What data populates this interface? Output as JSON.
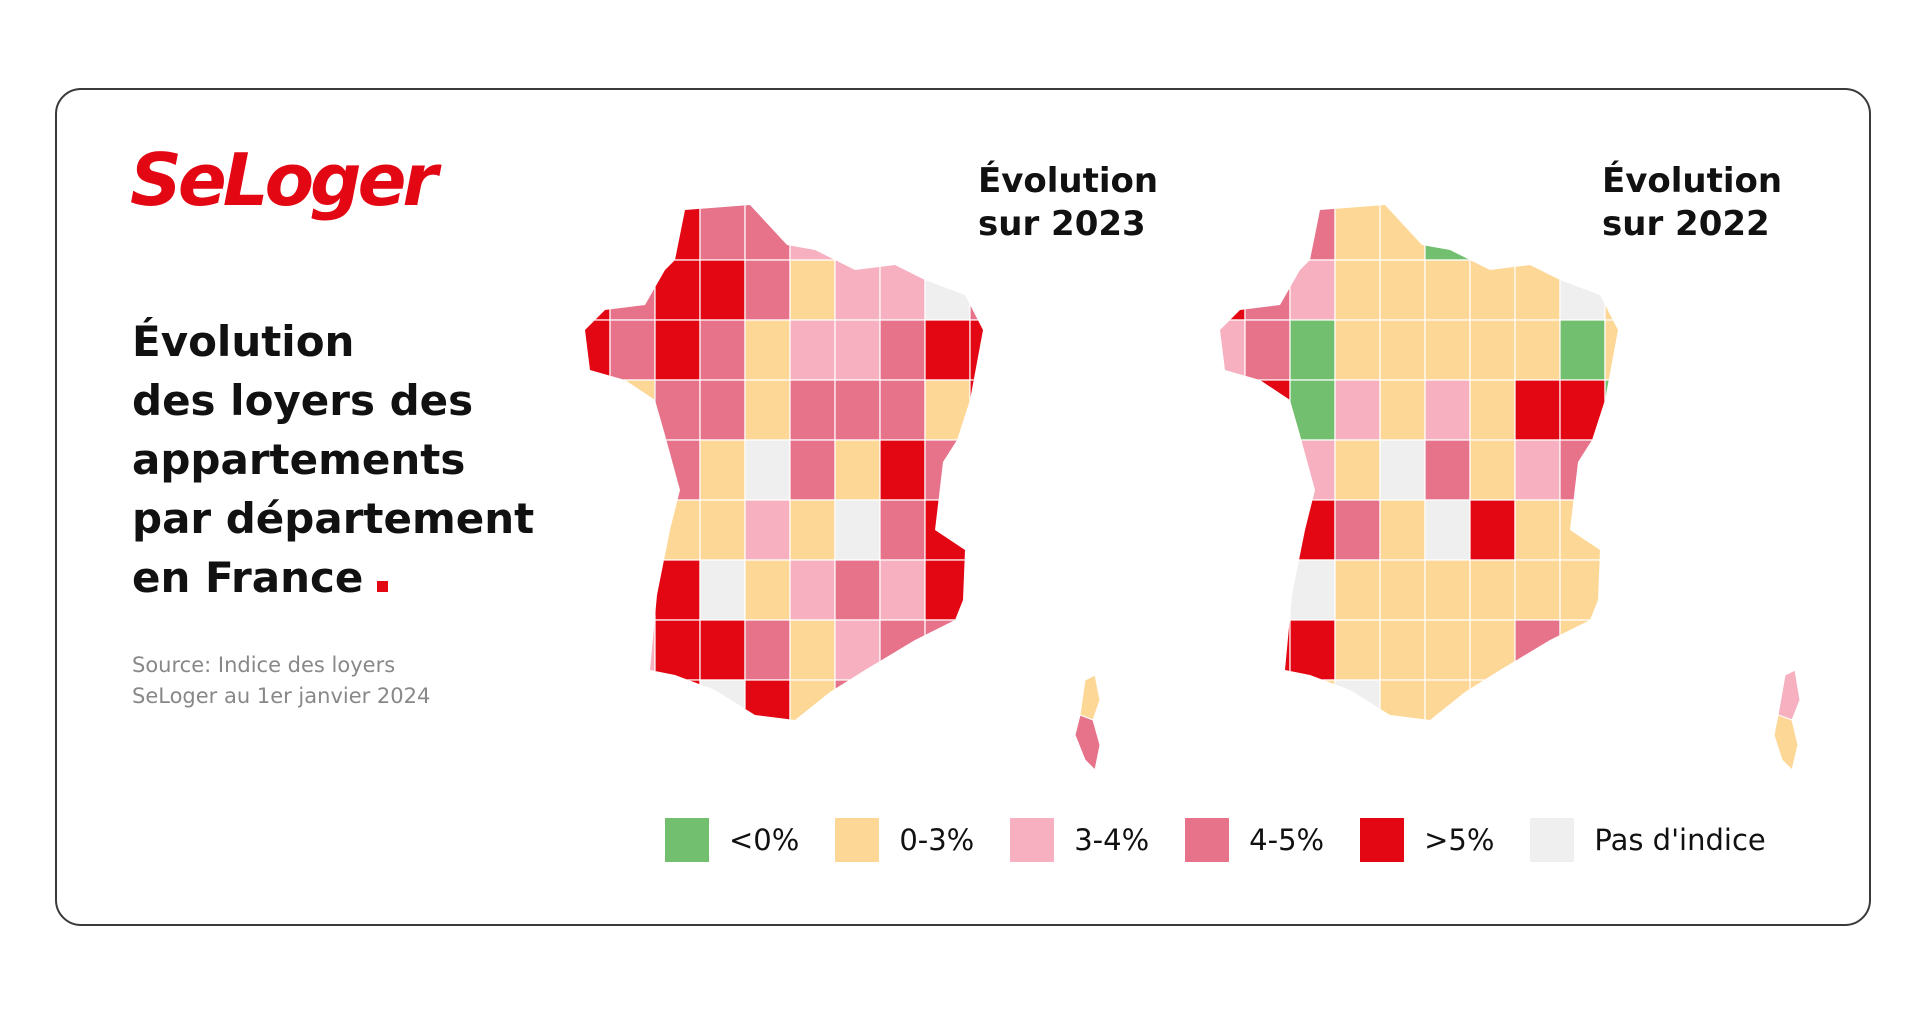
{
  "brand": {
    "name": "SeLoger",
    "color": "#e30613"
  },
  "headline": {
    "lines": [
      "Évolution",
      "des loyers des",
      "appartements",
      "par département",
      "en France"
    ]
  },
  "source": {
    "lines": [
      "Source: Indice des loyers",
      "SeLoger au 1er janvier 2024"
    ]
  },
  "maps": [
    {
      "id": "2023",
      "title_lines": [
        "Évolution",
        "sur 2023"
      ]
    },
    {
      "id": "2022",
      "title_lines": [
        "Évolution",
        "sur 2022"
      ]
    }
  ],
  "legend": [
    {
      "label": "<0%",
      "color": "#72bf6f"
    },
    {
      "label": "0-3%",
      "color": "#fdd796"
    },
    {
      "label": "3-4%",
      "color": "#f7b0c0"
    },
    {
      "label": "4-5%",
      "color": "#e6738a"
    },
    {
      "label": ">5%",
      "color": "#e30613"
    },
    {
      "label": "Pas d'indice",
      "color": "#efefef"
    }
  ]
}
